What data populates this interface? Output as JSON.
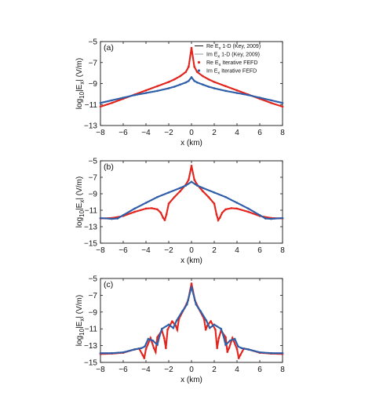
{
  "figure": {
    "panel_count": 3
  },
  "colors": {
    "re": "#e3241c",
    "im": "#2f5ea8",
    "ref_re": "#1a1a1a",
    "ref_im": "#9a9a9a",
    "axis": "#111111"
  },
  "chart_data": [
    {
      "type": "line",
      "panel_label": "(a)",
      "xlabel": "x (km)",
      "ylabel": "log 10|E x| (V/m)",
      "xlim": [
        -8,
        8
      ],
      "ylim": [
        -13,
        -5
      ],
      "xticks": [
        -8,
        -6,
        -4,
        -2,
        0,
        2,
        4,
        6,
        8
      ],
      "yticks": [
        -5,
        -7,
        -9,
        -11,
        -13
      ],
      "legend": {
        "placement": "top-right",
        "entries": [
          {
            "prefix": "Re E",
            "sub": "x",
            "suffix": " 1-D (Key, 2009)",
            "style": "ref-re-line"
          },
          {
            "prefix": "Im E",
            "sub": "x",
            "suffix": " 1-D (Key, 2009)",
            "style": "ref-im-line"
          },
          {
            "prefix": "Re E",
            "sub": "x",
            "suffix": " Iterative FEFD",
            "style": "re-dots"
          },
          {
            "prefix": "Im E",
            "sub": "x",
            "suffix": " Iterative FEFD",
            "style": "im-dots"
          }
        ]
      },
      "series": [
        {
          "role": "re",
          "x": [
            -8,
            -7,
            -6,
            -5,
            -4,
            -3,
            -2,
            -1.5,
            -1,
            -0.5,
            -0.25,
            0,
            0.25,
            0.5,
            1,
            1.5,
            2,
            3,
            4,
            5,
            6,
            7,
            8
          ],
          "y": [
            -11.2,
            -10.85,
            -10.45,
            -10.05,
            -9.65,
            -9.25,
            -8.85,
            -8.6,
            -8.3,
            -7.9,
            -7.4,
            -5.6,
            -7.4,
            -7.9,
            -8.3,
            -8.6,
            -8.85,
            -9.25,
            -9.65,
            -10.05,
            -10.45,
            -10.85,
            -11.2
          ]
        },
        {
          "role": "im",
          "x": [
            -8,
            -7,
            -6,
            -5,
            -4,
            -3,
            -2,
            -1.5,
            -1,
            -0.5,
            -0.25,
            0,
            0.25,
            0.5,
            1,
            1.5,
            2,
            3,
            4,
            5,
            6,
            7,
            8
          ],
          "y": [
            -10.85,
            -10.6,
            -10.35,
            -10.1,
            -9.9,
            -9.7,
            -9.45,
            -9.3,
            -9.1,
            -8.9,
            -8.75,
            -8.4,
            -8.75,
            -8.9,
            -9.1,
            -9.3,
            -9.45,
            -9.7,
            -9.9,
            -10.1,
            -10.35,
            -10.6,
            -10.85
          ]
        }
      ]
    },
    {
      "type": "line",
      "panel_label": "(b)",
      "xlabel": "x (km)",
      "ylabel": "log 10|E x| (V/m)",
      "xlim": [
        -8,
        8
      ],
      "ylim": [
        -15,
        -5
      ],
      "xticks": [
        -8,
        -6,
        -4,
        -2,
        0,
        2,
        4,
        6,
        8
      ],
      "yticks": [
        -5,
        -7,
        -9,
        -11,
        -13,
        -15
      ],
      "series": [
        {
          "role": "re",
          "x": [
            -8,
            -7,
            -6,
            -5,
            -4,
            -3.5,
            -3,
            -2.7,
            -2.5,
            -2.35,
            -2.2,
            -2,
            -1.5,
            -1,
            -0.5,
            -0.25,
            0,
            0.25,
            0.5,
            1,
            1.5,
            2,
            2.2,
            2.35,
            2.5,
            2.7,
            3,
            3.5,
            4,
            5,
            6,
            7,
            8
          ],
          "y": [
            -12.0,
            -11.95,
            -11.7,
            -11.2,
            -10.8,
            -10.75,
            -10.9,
            -11.3,
            -11.9,
            -12.2,
            -11.5,
            -10.2,
            -9.4,
            -8.7,
            -7.9,
            -7.3,
            -5.6,
            -7.3,
            -7.9,
            -8.7,
            -9.4,
            -10.2,
            -11.5,
            -12.2,
            -11.9,
            -11.3,
            -10.9,
            -10.75,
            -10.8,
            -11.2,
            -11.7,
            -11.95,
            -12.0
          ]
        },
        {
          "role": "im",
          "x": [
            -8,
            -7,
            -6.5,
            -6,
            -5,
            -4,
            -3,
            -2,
            -1,
            -0.5,
            0,
            0.5,
            1,
            2,
            3,
            4,
            5,
            6,
            6.5,
            7,
            8
          ],
          "y": [
            -11.95,
            -12.05,
            -12.0,
            -11.6,
            -10.8,
            -10.1,
            -9.4,
            -8.85,
            -8.3,
            -8.0,
            -7.55,
            -8.0,
            -8.3,
            -8.85,
            -9.4,
            -10.1,
            -10.8,
            -11.6,
            -12.0,
            -12.05,
            -11.95
          ]
        }
      ]
    },
    {
      "type": "line",
      "panel_label": "(c)",
      "xlabel": "x (km)",
      "ylabel": "log 10|E x| (V/m)",
      "xlim": [
        -8,
        8
      ],
      "ylim": [
        -15,
        -5
      ],
      "xticks": [
        -8,
        -6,
        -4,
        -2,
        0,
        2,
        4,
        6,
        8
      ],
      "yticks": [
        -5,
        -7,
        -9,
        -11,
        -13,
        -15
      ],
      "series": [
        {
          "role": "re",
          "x": [
            -8,
            -7,
            -6,
            -5,
            -4.6,
            -4.3,
            -4.15,
            -4,
            -3.6,
            -3.3,
            -3.15,
            -3,
            -2.6,
            -2.4,
            -2.25,
            -2.1,
            -1.7,
            -1.4,
            -1.25,
            -1.1,
            -0.6,
            -0.3,
            0,
            0.3,
            0.6,
            1.1,
            1.25,
            1.4,
            1.7,
            2.1,
            2.25,
            2.4,
            2.6,
            3,
            3.15,
            3.3,
            3.6,
            4,
            4.15,
            4.3,
            4.6,
            5,
            6,
            7,
            8
          ],
          "y": [
            -14.0,
            -13.95,
            -13.85,
            -13.45,
            -13.35,
            -14.1,
            -14.5,
            -13.4,
            -12.1,
            -13.3,
            -13.75,
            -12.0,
            -11.2,
            -12.1,
            -13.3,
            -11.1,
            -10.1,
            -10.6,
            -11.1,
            -9.8,
            -8.5,
            -7.6,
            -5.6,
            -7.6,
            -8.5,
            -9.8,
            -11.1,
            -10.6,
            -10.1,
            -11.1,
            -13.3,
            -12.1,
            -11.2,
            -12.0,
            -13.75,
            -13.3,
            -12.1,
            -13.4,
            -14.5,
            -14.1,
            -13.35,
            -13.45,
            -13.85,
            -13.95,
            -14.0
          ]
        },
        {
          "role": "im",
          "x": [
            -8,
            -7,
            -6,
            -5,
            -4.4,
            -4.1,
            -3.8,
            -3.4,
            -3.0,
            -2.8,
            -2.6,
            -2.0,
            -1.6,
            -1.3,
            -0.8,
            -0.4,
            0,
            0.4,
            0.8,
            1.3,
            1.6,
            2.0,
            2.6,
            2.8,
            3.0,
            3.4,
            3.8,
            4.1,
            4.4,
            5,
            6,
            7,
            8
          ],
          "y": [
            -13.9,
            -13.9,
            -13.8,
            -13.45,
            -13.3,
            -13.1,
            -12.2,
            -12.4,
            -12.9,
            -11.8,
            -11.0,
            -10.5,
            -10.9,
            -10.0,
            -8.9,
            -8.1,
            -6.0,
            -8.1,
            -8.9,
            -10.0,
            -10.9,
            -10.5,
            -11.0,
            -11.8,
            -12.9,
            -12.4,
            -12.2,
            -13.1,
            -13.3,
            -13.45,
            -13.8,
            -13.9,
            -13.9
          ]
        }
      ]
    }
  ]
}
